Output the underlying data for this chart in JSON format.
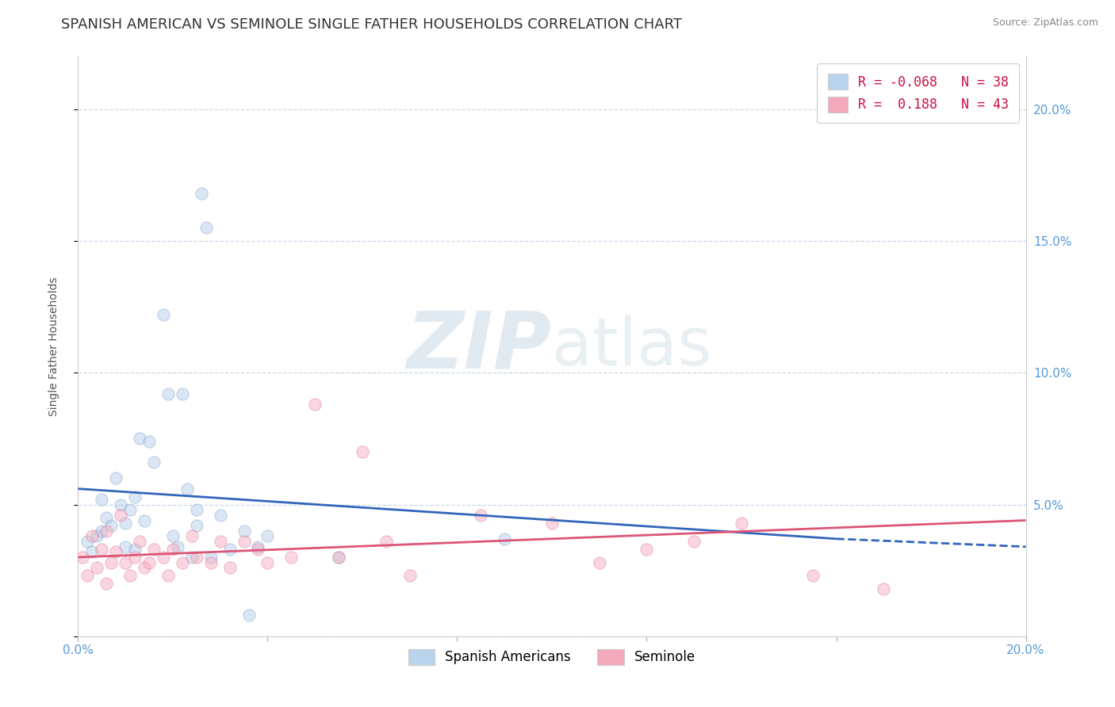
{
  "title": "SPANISH AMERICAN VS SEMINOLE SINGLE FATHER HOUSEHOLDS CORRELATION CHART",
  "source": "Source: ZipAtlas.com",
  "ylabel": "Single Father Households",
  "ytick_values": [
    0.0,
    0.05,
    0.1,
    0.15,
    0.2
  ],
  "ytick_labels_right": [
    "",
    "5.0%",
    "10.0%",
    "15.0%",
    "20.0%"
  ],
  "xlim": [
    0.0,
    0.2
  ],
  "ylim": [
    0.0,
    0.22
  ],
  "legend_entries": [
    {
      "label": "R = -0.068   N = 38",
      "color": "#b8d4ec"
    },
    {
      "label": "R =  0.188   N = 43",
      "color": "#f4a8bc"
    }
  ],
  "legend_bottom": [
    {
      "label": "Spanish Americans",
      "color": "#b8d4ec"
    },
    {
      "label": "Seminole",
      "color": "#f4a8bc"
    }
  ],
  "blue_scatter": [
    [
      0.002,
      0.036
    ],
    [
      0.003,
      0.032
    ],
    [
      0.004,
      0.038
    ],
    [
      0.005,
      0.04
    ],
    [
      0.005,
      0.052
    ],
    [
      0.006,
      0.045
    ],
    [
      0.007,
      0.042
    ],
    [
      0.008,
      0.06
    ],
    [
      0.009,
      0.05
    ],
    [
      0.01,
      0.043
    ],
    [
      0.01,
      0.034
    ],
    [
      0.011,
      0.048
    ],
    [
      0.012,
      0.033
    ],
    [
      0.012,
      0.053
    ],
    [
      0.013,
      0.075
    ],
    [
      0.014,
      0.044
    ],
    [
      0.015,
      0.074
    ],
    [
      0.016,
      0.066
    ],
    [
      0.018,
      0.122
    ],
    [
      0.019,
      0.092
    ],
    [
      0.02,
      0.038
    ],
    [
      0.021,
      0.034
    ],
    [
      0.022,
      0.092
    ],
    [
      0.023,
      0.056
    ],
    [
      0.024,
      0.03
    ],
    [
      0.025,
      0.042
    ],
    [
      0.025,
      0.048
    ],
    [
      0.026,
      0.168
    ],
    [
      0.027,
      0.155
    ],
    [
      0.028,
      0.03
    ],
    [
      0.03,
      0.046
    ],
    [
      0.032,
      0.033
    ],
    [
      0.035,
      0.04
    ],
    [
      0.036,
      0.008
    ],
    [
      0.038,
      0.034
    ],
    [
      0.04,
      0.038
    ],
    [
      0.055,
      0.03
    ],
    [
      0.09,
      0.037
    ]
  ],
  "pink_scatter": [
    [
      0.001,
      0.03
    ],
    [
      0.002,
      0.023
    ],
    [
      0.003,
      0.038
    ],
    [
      0.004,
      0.026
    ],
    [
      0.005,
      0.033
    ],
    [
      0.006,
      0.02
    ],
    [
      0.006,
      0.04
    ],
    [
      0.007,
      0.028
    ],
    [
      0.008,
      0.032
    ],
    [
      0.009,
      0.046
    ],
    [
      0.01,
      0.028
    ],
    [
      0.011,
      0.023
    ],
    [
      0.012,
      0.03
    ],
    [
      0.013,
      0.036
    ],
    [
      0.014,
      0.026
    ],
    [
      0.015,
      0.028
    ],
    [
      0.016,
      0.033
    ],
    [
      0.018,
      0.03
    ],
    [
      0.019,
      0.023
    ],
    [
      0.02,
      0.033
    ],
    [
      0.022,
      0.028
    ],
    [
      0.024,
      0.038
    ],
    [
      0.025,
      0.03
    ],
    [
      0.028,
      0.028
    ],
    [
      0.03,
      0.036
    ],
    [
      0.032,
      0.026
    ],
    [
      0.035,
      0.036
    ],
    [
      0.038,
      0.033
    ],
    [
      0.04,
      0.028
    ],
    [
      0.045,
      0.03
    ],
    [
      0.05,
      0.088
    ],
    [
      0.055,
      0.03
    ],
    [
      0.06,
      0.07
    ],
    [
      0.065,
      0.036
    ],
    [
      0.07,
      0.023
    ],
    [
      0.085,
      0.046
    ],
    [
      0.1,
      0.043
    ],
    [
      0.11,
      0.028
    ],
    [
      0.12,
      0.033
    ],
    [
      0.13,
      0.036
    ],
    [
      0.14,
      0.043
    ],
    [
      0.155,
      0.023
    ],
    [
      0.17,
      0.018
    ]
  ],
  "blue_line_solid": {
    "x0": 0.0,
    "y0": 0.056,
    "x1": 0.16,
    "y1": 0.037
  },
  "blue_line_dashed": {
    "x0": 0.16,
    "y0": 0.037,
    "x1": 0.2,
    "y1": 0.034
  },
  "pink_line": {
    "x0": 0.0,
    "y0": 0.03,
    "x1": 0.2,
    "y1": 0.044
  },
  "watermark_zip": "ZIP",
  "watermark_atlas": "atlas",
  "background_color": "#ffffff",
  "grid_color": "#c8d8e8",
  "scatter_size": 120,
  "scatter_alpha": 0.45,
  "title_fontsize": 13,
  "axis_label_fontsize": 10,
  "tick_fontsize": 11,
  "tick_color": "#5599dd"
}
